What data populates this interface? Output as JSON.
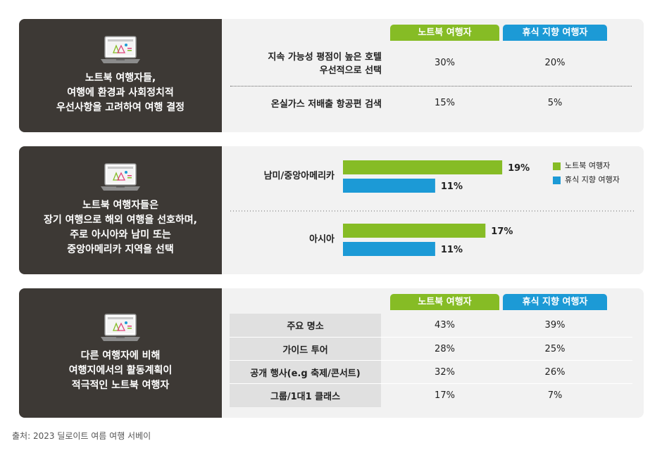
{
  "colors": {
    "green": "#86bc25",
    "blue": "#1c9ad6",
    "dark": "#3d3935"
  },
  "columns": {
    "notebook": "노트북 여행자",
    "rest": "휴식 지향 여행자"
  },
  "panel1": {
    "left_lines": [
      "노트북 여행자들,",
      "여행에 환경과 사회정치적",
      "우선사항을 고려하여 여행 결정"
    ],
    "rows": [
      {
        "label_lines": [
          "지속 가능성 평점이 높은 호텔",
          "우선적으로 선택"
        ],
        "notebook": "30%",
        "rest": "20%"
      },
      {
        "label_lines": [
          "온실가스 저배출 항공편 검색"
        ],
        "notebook": "15%",
        "rest": "5%"
      }
    ]
  },
  "panel2": {
    "left_lines": [
      "노트북 여행자들은",
      "장기 여행으로 해외 여행을 선호하며,",
      "주로 아시아와 남미 또는",
      "중앙아메리카 지역을 선택"
    ],
    "legend": [
      "노트북 여행자",
      "휴식 지향 여행자"
    ]
  },
  "chart_data": {
    "type": "bar",
    "orientation": "horizontal",
    "categories": [
      "남미/중앙아메리카",
      "아시아"
    ],
    "series": [
      {
        "name": "노트북 여행자",
        "values": [
          19,
          17
        ],
        "labels": [
          "19%",
          "17%"
        ]
      },
      {
        "name": "휴식 지향 여행자",
        "values": [
          11,
          11
        ],
        "labels": [
          "11%",
          "11%"
        ]
      }
    ],
    "unit": "%",
    "legend_position": "top-right"
  },
  "panel3": {
    "left_lines": [
      "다른 여행자에 비해",
      "여행지에서의 활동계획이",
      "적극적인 노트북 여행자"
    ],
    "rows": [
      {
        "label": "주요 명소",
        "notebook": "43%",
        "rest": "39%"
      },
      {
        "label": "가이드 투어",
        "notebook": "28%",
        "rest": "25%"
      },
      {
        "label": "공개 행사(e.g 축제/콘서트)",
        "notebook": "32%",
        "rest": "26%"
      },
      {
        "label": "그룹/1대1 클래스",
        "notebook": "17%",
        "rest": "7%"
      }
    ]
  },
  "source": "출처: 2023 딜로이트 여름 여행 서베이"
}
